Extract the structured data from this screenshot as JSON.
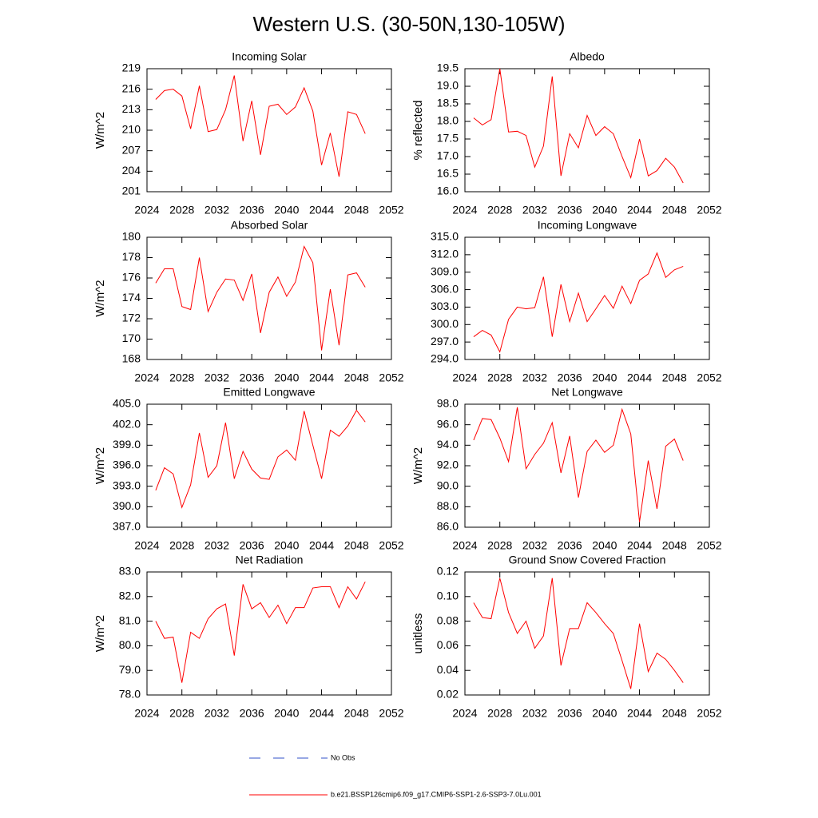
{
  "title": "Western U.S. (30-50N,130-105W)",
  "legend": [
    {
      "name": "No Obs",
      "color": "#3050c8",
      "dash": true
    },
    {
      "name": "b.e21.BSSP126cmip6.f09_g17.CMIP6-SSP1-2.6-SSP3-7.0Lu.001",
      "color": "#ff0000",
      "dash": false
    }
  ],
  "chart_data": [
    {
      "type": "line",
      "title": "Incoming Solar",
      "y_label": "W/m^2",
      "color": "#ff0000",
      "x": [
        2025,
        2026,
        2027,
        2028,
        2029,
        2030,
        2031,
        2032,
        2033,
        2034,
        2035,
        2036,
        2037,
        2038,
        2039,
        2040,
        2041,
        2042,
        2043,
        2044,
        2045,
        2046,
        2047,
        2048,
        2049
      ],
      "values": [
        214.5,
        215.8,
        216.0,
        215.0,
        210.2,
        216.5,
        209.8,
        210.1,
        213.0,
        218.0,
        208.4,
        214.3,
        206.4,
        213.5,
        213.8,
        212.3,
        213.4,
        216.2,
        212.8,
        204.9,
        209.6,
        203.2,
        212.7,
        212.3,
        209.5
      ],
      "xlim": [
        2024,
        2052
      ],
      "xticks": [
        2024,
        2028,
        2032,
        2036,
        2040,
        2044,
        2048,
        2052
      ],
      "ylim": [
        201,
        219
      ],
      "yticks": [
        201,
        204,
        207,
        210,
        213,
        216,
        219
      ]
    },
    {
      "type": "line",
      "title": "Albedo",
      "y_label": "% reflected",
      "color": "#ff0000",
      "x": [
        2025,
        2026,
        2027,
        2028,
        2029,
        2030,
        2031,
        2032,
        2033,
        2034,
        2035,
        2036,
        2037,
        2038,
        2039,
        2040,
        2041,
        2042,
        2043,
        2044,
        2045,
        2046,
        2047,
        2048,
        2049
      ],
      "values": [
        18.1,
        17.9,
        18.05,
        19.5,
        17.7,
        17.72,
        17.6,
        16.7,
        17.3,
        19.28,
        16.45,
        17.65,
        17.25,
        18.17,
        17.6,
        17.85,
        17.65,
        17.0,
        16.4,
        17.5,
        16.45,
        16.6,
        16.95,
        16.7,
        16.25
      ],
      "xlim": [
        2024,
        2052
      ],
      "xticks": [
        2024,
        2028,
        2032,
        2036,
        2040,
        2044,
        2048,
        2052
      ],
      "ylim": [
        16.0,
        19.5
      ],
      "yticks": [
        {
          "value": 16,
          "label": "16.0"
        },
        16.5,
        {
          "value": 17,
          "label": "17.0"
        },
        17.5,
        {
          "value": 18,
          "label": "18.0"
        },
        18.5,
        {
          "value": 19,
          "label": "19.0"
        },
        19.5
      ]
    },
    {
      "type": "line",
      "title": "Absorbed Solar",
      "y_label": "W/m^2",
      "color": "#ff0000",
      "x": [
        2025,
        2026,
        2027,
        2028,
        2029,
        2030,
        2031,
        2032,
        2033,
        2034,
        2035,
        2036,
        2037,
        2038,
        2039,
        2040,
        2041,
        2042,
        2043,
        2044,
        2045,
        2046,
        2047,
        2048,
        2049
      ],
      "values": [
        175.5,
        176.9,
        176.9,
        173.2,
        172.9,
        178.0,
        172.7,
        174.6,
        175.9,
        175.8,
        173.8,
        176.4,
        170.6,
        174.6,
        176.1,
        174.2,
        175.6,
        179.1,
        177.5,
        168.9,
        174.9,
        169.4,
        176.3,
        176.5,
        175.1
      ],
      "xlim": [
        2024,
        2052
      ],
      "xticks": [
        2024,
        2028,
        2032,
        2036,
        2040,
        2044,
        2048,
        2052
      ],
      "ylim": [
        168,
        180
      ],
      "yticks": [
        168,
        170,
        172,
        174,
        176,
        178,
        180
      ]
    },
    {
      "type": "line",
      "title": "Incoming Longwave",
      "y_label": "",
      "color": "#ff0000",
      "x": [
        2025,
        2026,
        2027,
        2028,
        2029,
        2030,
        2031,
        2032,
        2033,
        2034,
        2035,
        2036,
        2037,
        2038,
        2039,
        2040,
        2041,
        2042,
        2043,
        2044,
        2045,
        2046,
        2047,
        2048,
        2049
      ],
      "values": [
        297.9,
        299.0,
        298.2,
        295.3,
        300.9,
        303.0,
        302.7,
        302.9,
        308.2,
        297.9,
        306.9,
        300.5,
        305.4,
        300.5,
        302.7,
        305.0,
        302.8,
        306.6,
        303.6,
        307.6,
        308.7,
        312.3,
        308.1,
        309.4,
        310.0
      ],
      "xlim": [
        2024,
        2052
      ],
      "xticks": [
        2024,
        2028,
        2032,
        2036,
        2040,
        2044,
        2048,
        2052
      ],
      "ylim": [
        294,
        315
      ],
      "yticks": [
        {
          "value": 294,
          "label": "294.0"
        },
        {
          "value": 297,
          "label": "297.0"
        },
        {
          "value": 300,
          "label": "300.0"
        },
        {
          "value": 303,
          "label": "303.0"
        },
        {
          "value": 306,
          "label": "306.0"
        },
        {
          "value": 309,
          "label": "309.0"
        },
        {
          "value": 312,
          "label": "312.0"
        },
        {
          "value": 315,
          "label": "315.0"
        }
      ]
    },
    {
      "type": "line",
      "title": "Emitted Longwave",
      "y_label": "W/m^2",
      "color": "#ff0000",
      "x": [
        2025,
        2026,
        2027,
        2028,
        2029,
        2030,
        2031,
        2032,
        2033,
        2034,
        2035,
        2036,
        2037,
        2038,
        2039,
        2040,
        2041,
        2042,
        2043,
        2044,
        2045,
        2046,
        2047,
        2048,
        2049
      ],
      "values": [
        392.4,
        395.7,
        394.8,
        389.9,
        393.2,
        400.8,
        394.3,
        396.0,
        402.3,
        394.1,
        398.1,
        395.5,
        394.2,
        394.0,
        397.3,
        398.3,
        396.8,
        404.0,
        399.0,
        394.1,
        401.2,
        400.3,
        401.8,
        404.1,
        402.4
      ],
      "xlim": [
        2024,
        2052
      ],
      "xticks": [
        2024,
        2028,
        2032,
        2036,
        2040,
        2044,
        2048,
        2052
      ],
      "ylim": [
        387,
        405
      ],
      "yticks": [
        {
          "value": 387,
          "label": "387.0"
        },
        {
          "value": 390,
          "label": "390.0"
        },
        {
          "value": 393,
          "label": "393.0"
        },
        {
          "value": 396,
          "label": "396.0"
        },
        {
          "value": 399,
          "label": "399.0"
        },
        {
          "value": 402,
          "label": "402.0"
        },
        {
          "value": 405,
          "label": "405.0"
        }
      ]
    },
    {
      "type": "line",
      "title": "Net Longwave",
      "y_label": "W/m^2",
      "color": "#ff0000",
      "x": [
        2025,
        2026,
        2027,
        2028,
        2029,
        2030,
        2031,
        2032,
        2033,
        2034,
        2035,
        2036,
        2037,
        2038,
        2039,
        2040,
        2041,
        2042,
        2043,
        2044,
        2045,
        2046,
        2047,
        2048,
        2049
      ],
      "values": [
        94.5,
        96.6,
        96.5,
        94.7,
        92.4,
        97.7,
        91.7,
        93.1,
        94.2,
        96.2,
        91.3,
        94.9,
        88.9,
        93.4,
        94.5,
        93.3,
        94.0,
        97.5,
        95.1,
        86.5,
        92.5,
        87.8,
        93.9,
        94.6,
        92.5
      ],
      "xlim": [
        2024,
        2052
      ],
      "xticks": [
        2024,
        2028,
        2032,
        2036,
        2040,
        2044,
        2048,
        2052
      ],
      "ylim": [
        86,
        98
      ],
      "yticks": [
        {
          "value": 86,
          "label": "86.0"
        },
        {
          "value": 88,
          "label": "88.0"
        },
        {
          "value": 90,
          "label": "90.0"
        },
        {
          "value": 92,
          "label": "92.0"
        },
        {
          "value": 94,
          "label": "94.0"
        },
        {
          "value": 96,
          "label": "96.0"
        },
        {
          "value": 98,
          "label": "98.0"
        }
      ]
    },
    {
      "type": "line",
      "title": "Net Radiation",
      "y_label": "W/m^2",
      "color": "#ff0000",
      "x": [
        2025,
        2026,
        2027,
        2028,
        2029,
        2030,
        2031,
        2032,
        2033,
        2034,
        2035,
        2036,
        2037,
        2038,
        2039,
        2040,
        2041,
        2042,
        2043,
        2044,
        2045,
        2046,
        2047,
        2048,
        2049
      ],
      "values": [
        81.0,
        80.3,
        80.35,
        78.5,
        80.55,
        80.3,
        81.1,
        81.5,
        81.7,
        79.6,
        82.5,
        81.5,
        81.75,
        81.15,
        81.65,
        80.9,
        81.55,
        81.55,
        82.35,
        82.4,
        82.4,
        81.55,
        82.4,
        81.9,
        82.6
      ],
      "xlim": [
        2024,
        2052
      ],
      "xticks": [
        2024,
        2028,
        2032,
        2036,
        2040,
        2044,
        2048,
        2052
      ],
      "ylim": [
        78,
        83
      ],
      "yticks": [
        {
          "value": 78,
          "label": "78.0"
        },
        {
          "value": 79,
          "label": "79.0"
        },
        {
          "value": 80,
          "label": "80.0"
        },
        {
          "value": 81,
          "label": "81.0"
        },
        {
          "value": 82,
          "label": "82.0"
        },
        {
          "value": 83,
          "label": "83.0"
        }
      ]
    },
    {
      "type": "line",
      "title": "Ground Snow Covered Fraction",
      "y_label": "unitless",
      "color": "#ff0000",
      "x": [
        2025,
        2026,
        2027,
        2028,
        2029,
        2030,
        2031,
        2032,
        2033,
        2034,
        2035,
        2036,
        2037,
        2038,
        2039,
        2040,
        2041,
        2042,
        2043,
        2044,
        2045,
        2046,
        2047,
        2048,
        2049
      ],
      "values": [
        0.095,
        0.083,
        0.082,
        0.115,
        0.087,
        0.07,
        0.08,
        0.058,
        0.068,
        0.115,
        0.044,
        0.074,
        0.074,
        0.095,
        0.087,
        0.078,
        0.07,
        0.048,
        0.025,
        0.078,
        0.039,
        0.054,
        0.049,
        0.04,
        0.03
      ],
      "xlim": [
        2024,
        2052
      ],
      "xticks": [
        2024,
        2028,
        2032,
        2036,
        2040,
        2044,
        2048,
        2052
      ],
      "ylim": [
        0.02,
        0.12
      ],
      "yticks": [
        0.02,
        0.04,
        0.06,
        0.08,
        {
          "value": 0.1,
          "label": "0.10"
        },
        0.12
      ]
    }
  ]
}
